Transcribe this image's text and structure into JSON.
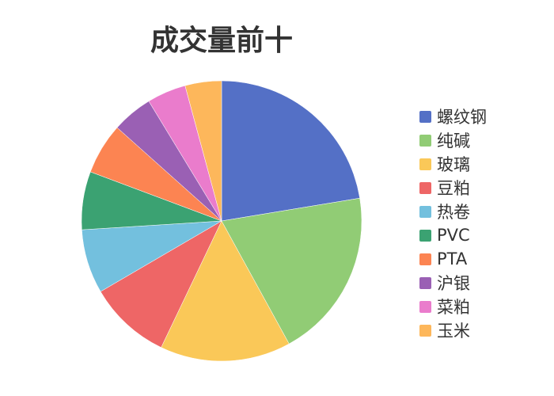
{
  "chart_data": {
    "type": "pie",
    "title": "成交量前十",
    "categories": [
      "螺纹钢",
      "纯碱",
      "玻璃",
      "豆粕",
      "热卷",
      "PVC",
      "PTA",
      "沪银",
      "菜粕",
      "玉米"
    ],
    "values": [
      22.4,
      19.6,
      15.1,
      9.5,
      7.4,
      6.7,
      5.9,
      4.7,
      4.5,
      4.2
    ],
    "colors": [
      "#5470c6",
      "#91cc75",
      "#fac858",
      "#ee6666",
      "#73c0de",
      "#3ba272",
      "#fc8452",
      "#9a60b4",
      "#ea7ccc",
      "#fdb75b"
    ],
    "legend_position": "right"
  }
}
